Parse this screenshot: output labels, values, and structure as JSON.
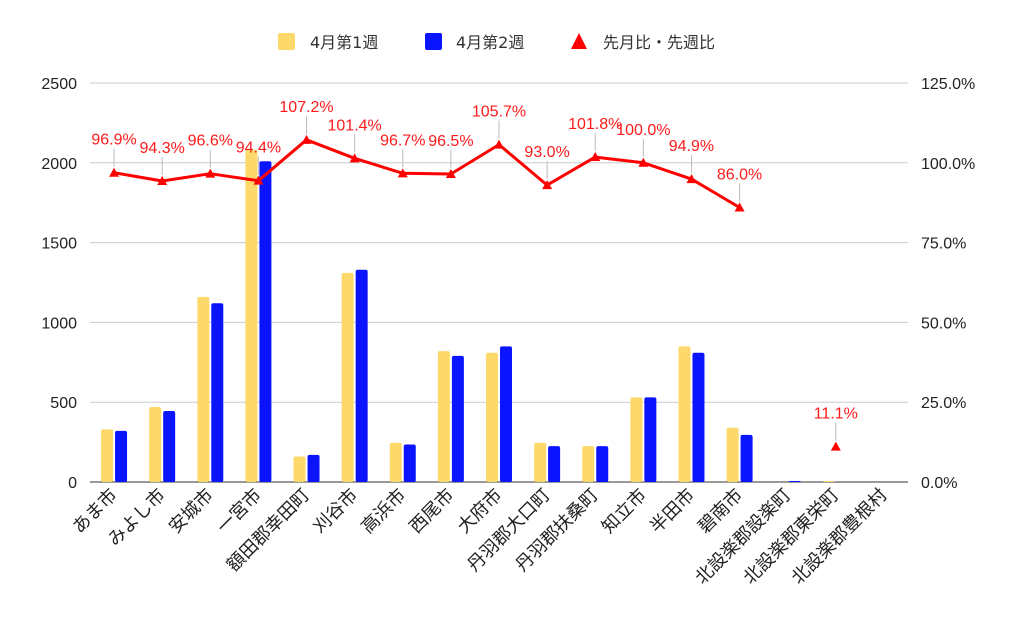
{
  "chart_data": {
    "type": "bar",
    "categories": [
      "あま市",
      "みよし市",
      "安城市",
      "一宮市",
      "額田郡幸田町",
      "刈谷市",
      "高浜市",
      "西尾市",
      "大府市",
      "丹羽郡大口町",
      "丹羽郡扶桑町",
      "知立市",
      "半田市",
      "碧南市",
      "北設楽郡設楽町",
      "北設楽郡東栄町",
      "北設楽郡豊根村"
    ],
    "series": [
      {
        "name": "4月第1週",
        "color": "#fdd86b",
        "values": [
          330,
          470,
          1160,
          2080,
          160,
          1310,
          245,
          820,
          810,
          245,
          225,
          530,
          850,
          340,
          0,
          5,
          0
        ]
      },
      {
        "name": "4月第2週",
        "color": "#0a14ff",
        "values": [
          320,
          445,
          1120,
          2010,
          170,
          1330,
          235,
          790,
          850,
          225,
          225,
          530,
          810,
          295,
          3,
          0,
          0
        ]
      }
    ],
    "line_series": {
      "name": "先月比・先週比",
      "color": "#ff0000",
      "values": [
        96.9,
        94.3,
        96.6,
        94.4,
        107.2,
        101.4,
        96.7,
        96.5,
        105.7,
        93.0,
        101.8,
        100.0,
        94.9,
        86.0,
        null,
        11.1,
        null
      ],
      "labels": [
        "96.9%",
        "94.3%",
        "96.6%",
        "94.4%",
        "107.2%",
        "101.4%",
        "96.7%",
        "96.5%",
        "105.7%",
        "93.0%",
        "101.8%",
        "100.0%",
        "94.9%",
        "86.0%",
        "",
        "11.1%",
        ""
      ]
    },
    "y_left": {
      "min": 0,
      "max": 2500,
      "ticks": [
        "0",
        "500",
        "1000",
        "1500",
        "2000",
        "2500"
      ]
    },
    "y_right": {
      "min": 0,
      "max": 125,
      "ticks": [
        "0.0%",
        "25.0%",
        "50.0%",
        "75.0%",
        "100.0%",
        "125.0%"
      ]
    },
    "grid": true,
    "legend_position": "top"
  }
}
